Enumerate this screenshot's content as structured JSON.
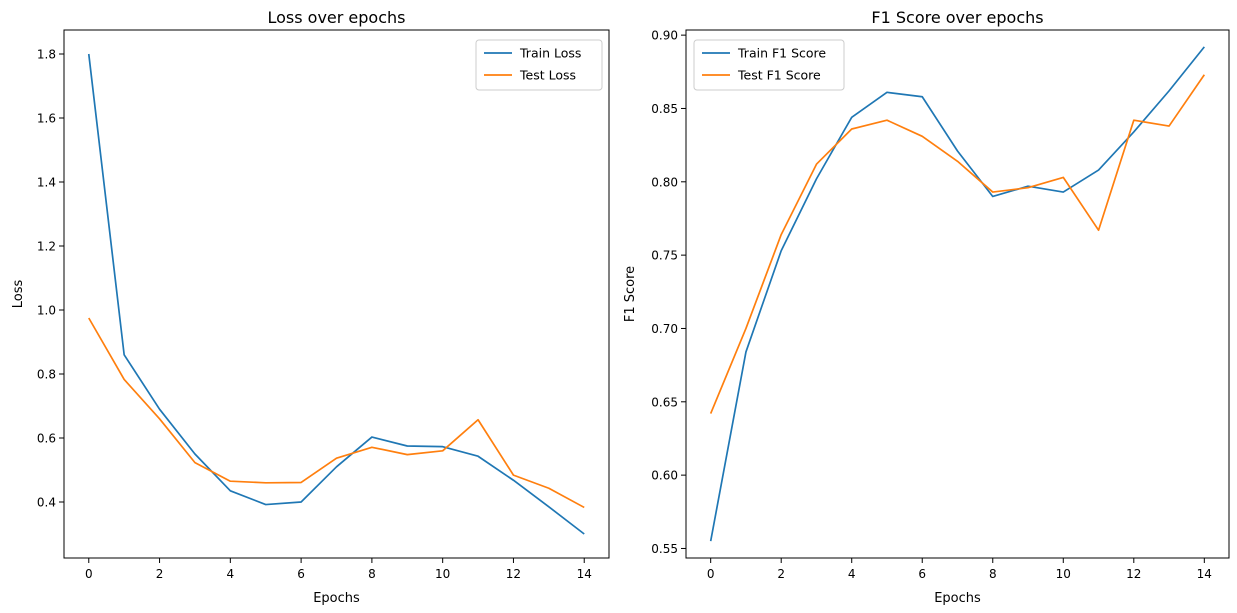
{
  "chart_data": [
    {
      "type": "line",
      "title": "Loss over epochs",
      "xlabel": "Epochs",
      "ylabel": "Loss",
      "xlim": [
        -0.7,
        14.7
      ],
      "ylim": [
        0.225,
        1.875
      ],
      "xticks": [
        0,
        2,
        4,
        6,
        8,
        10,
        12,
        14
      ],
      "xtick_labels": [
        "0",
        "2",
        "4",
        "6",
        "8",
        "10",
        "12",
        "14"
      ],
      "yticks": [
        0.4,
        0.6,
        0.8,
        1.0,
        1.2,
        1.4,
        1.6,
        1.8
      ],
      "ytick_labels": [
        "0.4",
        "0.6",
        "0.8",
        "1.0",
        "1.2",
        "1.4",
        "1.6",
        "1.8"
      ],
      "grid": false,
      "legend_position": "top-right",
      "x": [
        0,
        1,
        2,
        3,
        4,
        5,
        6,
        7,
        8,
        9,
        10,
        11,
        12,
        13,
        14
      ],
      "series": [
        {
          "name": "Train Loss",
          "color": "#1f77b4",
          "values": [
            1.8,
            0.86,
            0.69,
            0.55,
            0.435,
            0.392,
            0.4,
            0.51,
            0.603,
            0.575,
            0.573,
            0.543,
            0.468,
            0.385,
            0.3
          ]
        },
        {
          "name": "Test Loss",
          "color": "#ff7f0e",
          "values": [
            0.975,
            0.783,
            0.66,
            0.523,
            0.465,
            0.46,
            0.461,
            0.537,
            0.571,
            0.548,
            0.56,
            0.657,
            0.484,
            0.443,
            0.383
          ]
        }
      ]
    },
    {
      "type": "line",
      "title": "F1 Score over epochs",
      "xlabel": "Epochs",
      "ylabel": "F1 Score",
      "xlim": [
        -0.7,
        14.7
      ],
      "ylim": [
        0.5435,
        0.9035
      ],
      "xticks": [
        0,
        2,
        4,
        6,
        8,
        10,
        12,
        14
      ],
      "xtick_labels": [
        "0",
        "2",
        "4",
        "6",
        "8",
        "10",
        "12",
        "14"
      ],
      "yticks": [
        0.55,
        0.6,
        0.65,
        0.7,
        0.75,
        0.8,
        0.85,
        0.9
      ],
      "ytick_labels": [
        "0.55",
        "0.60",
        "0.65",
        "0.70",
        "0.75",
        "0.80",
        "0.85",
        "0.90"
      ],
      "grid": false,
      "legend_position": "top-left",
      "x": [
        0,
        1,
        2,
        3,
        4,
        5,
        6,
        7,
        8,
        9,
        10,
        11,
        12,
        13,
        14
      ],
      "series": [
        {
          "name": "Train F1 Score",
          "color": "#1f77b4",
          "values": [
            0.555,
            0.684,
            0.753,
            0.802,
            0.844,
            0.861,
            0.858,
            0.821,
            0.79,
            0.797,
            0.793,
            0.808,
            0.834,
            0.862,
            0.892
          ]
        },
        {
          "name": "Test F1 Score",
          "color": "#ff7f0e",
          "values": [
            0.642,
            0.7,
            0.764,
            0.812,
            0.836,
            0.842,
            0.831,
            0.814,
            0.793,
            0.796,
            0.803,
            0.767,
            0.842,
            0.838,
            0.873
          ]
        }
      ]
    }
  ]
}
